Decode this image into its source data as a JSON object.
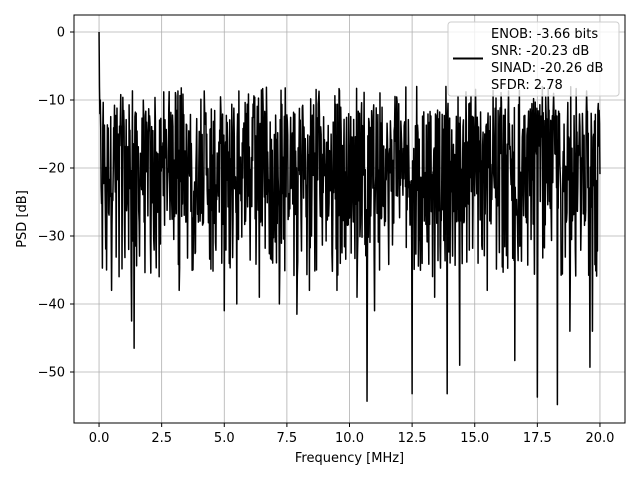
{
  "chart_data": {
    "type": "line",
    "title": "",
    "xlabel": "Frequency [MHz]",
    "ylabel": "PSD [dB]",
    "xlim": [
      -1.0,
      21.0
    ],
    "ylim": [
      -57.5,
      2.5
    ],
    "xticks": [
      0.0,
      2.5,
      5.0,
      7.5,
      10.0,
      12.5,
      15.0,
      17.5,
      20.0
    ],
    "xtick_labels": [
      "0.0",
      "2.5",
      "5.0",
      "7.5",
      "10.0",
      "12.5",
      "15.0",
      "17.5",
      "20.0"
    ],
    "yticks": [
      0,
      -10,
      -20,
      -30,
      -40,
      -50
    ],
    "ytick_labels": [
      "0",
      "−10",
      "−20",
      "−30",
      "−40",
      "−50"
    ],
    "grid": true,
    "legend_position": "top-right",
    "legend_entries": [
      "ENOB: -3.66 bits",
      "SNR: -20.23 dB",
      "SINAD: -20.26 dB",
      "SFDR: 2.78"
    ],
    "series": [
      {
        "color": "#000000",
        "x_start": 0.0,
        "x_end": 20.0,
        "noise_floor_db": -20,
        "noise_band_db": [
          -30,
          -10
        ],
        "peak": {
          "x": 0.0,
          "y": 0.0
        },
        "dips": [
          {
            "x": 0.3,
            "y": -35
          },
          {
            "x": 0.5,
            "y": -38
          },
          {
            "x": 0.8,
            "y": -36
          },
          {
            "x": 1.3,
            "y": -42.5
          },
          {
            "x": 1.4,
            "y": -46.5
          },
          {
            "x": 2.4,
            "y": -36
          },
          {
            "x": 3.2,
            "y": -38
          },
          {
            "x": 5.0,
            "y": -41
          },
          {
            "x": 5.5,
            "y": -40
          },
          {
            "x": 6.4,
            "y": -39
          },
          {
            "x": 7.2,
            "y": -40
          },
          {
            "x": 7.9,
            "y": -41.5
          },
          {
            "x": 8.4,
            "y": -38
          },
          {
            "x": 9.5,
            "y": -38
          },
          {
            "x": 10.3,
            "y": -39
          },
          {
            "x": 10.7,
            "y": -54.3
          },
          {
            "x": 11.0,
            "y": -41
          },
          {
            "x": 12.5,
            "y": -53.2
          },
          {
            "x": 13.4,
            "y": -39
          },
          {
            "x": 13.9,
            "y": -53.2
          },
          {
            "x": 14.4,
            "y": -49
          },
          {
            "x": 15.5,
            "y": -38
          },
          {
            "x": 16.6,
            "y": -48.3
          },
          {
            "x": 17.5,
            "y": -53.7
          },
          {
            "x": 18.3,
            "y": -54.8
          },
          {
            "x": 18.8,
            "y": -44
          },
          {
            "x": 19.6,
            "y": -49.3
          },
          {
            "x": 19.7,
            "y": -44
          }
        ]
      }
    ]
  }
}
